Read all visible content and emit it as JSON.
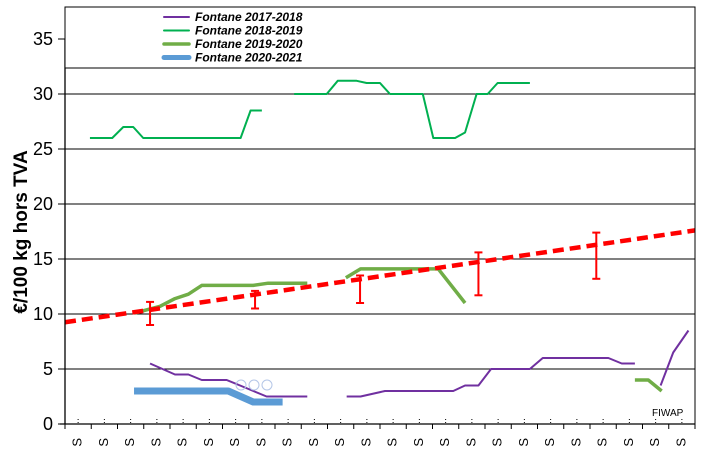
{
  "chart_data": {
    "type": "line",
    "title": "",
    "ylabel": "€/100 kg hors TVA",
    "xlabel": "",
    "ylim": [
      0,
      35
    ],
    "yticks": [
      "0",
      "5",
      "10",
      "15",
      "20",
      "25",
      "30",
      "35"
    ],
    "ytick_values": [
      0,
      5,
      10,
      15,
      20,
      25,
      30,
      35
    ],
    "xticks": [
      "S",
      "S",
      "S",
      "S",
      "S",
      "S",
      "S",
      "S",
      "S",
      "S",
      "S",
      "S",
      "S",
      "S",
      "S",
      "S",
      "S",
      "S",
      "S",
      "S",
      "S",
      "S",
      "S",
      "S"
    ],
    "x_unit_note": "x in category units (0 = left axis, 24 = right edge)",
    "xlim": [
      0,
      24
    ],
    "grid": true,
    "legend_placement": "top",
    "source_label": "FIWAP",
    "series": [
      {
        "name": "Fontane 2017-2018",
        "color": "#7030A0",
        "width": 2,
        "segments": [
          [
            [
              3.24,
              5.5
            ],
            [
              4.19,
              4.5
            ],
            [
              4.7,
              4.5
            ],
            [
              5.21,
              4.0
            ],
            [
              6.16,
              4.0
            ],
            [
              6.67,
              3.5
            ],
            [
              7.68,
              2.5
            ],
            [
              9.23,
              2.5
            ]
          ],
          [
            [
              10.73,
              2.5
            ],
            [
              11.26,
              2.5
            ],
            [
              12.19,
              3.0
            ],
            [
              14.79,
              3.0
            ],
            [
              15.24,
              3.5
            ],
            [
              15.75,
              3.5
            ],
            [
              16.23,
              5.0
            ],
            [
              17.71,
              5.0
            ],
            [
              18.2,
              6.0
            ],
            [
              20.7,
              6.0
            ],
            [
              21.21,
              5.5
            ],
            [
              21.71,
              5.5
            ]
          ],
          [
            [
              22.69,
              3.5
            ],
            [
              23.17,
              6.5
            ],
            [
              23.75,
              8.5
            ]
          ]
        ]
      },
      {
        "name": "Fontane 2018-2019",
        "color": "#00B050",
        "width": 2,
        "segments": [
          [
            [
              0.95,
              26
            ],
            [
              1.8,
              26
            ],
            [
              2.22,
              27
            ],
            [
              2.6,
              27
            ],
            [
              2.98,
              26
            ],
            [
              6.69,
              26
            ],
            [
              7.07,
              28.5
            ],
            [
              7.5,
              28.5
            ]
          ],
          [
            [
              8.73,
              30
            ],
            [
              9.97,
              30
            ],
            [
              10.39,
              31.2
            ],
            [
              11.11,
              31.2
            ],
            [
              11.49,
              31
            ],
            [
              12.0,
              31
            ],
            [
              12.38,
              30
            ],
            [
              13.63,
              30
            ],
            [
              14.03,
              26
            ],
            [
              14.86,
              26
            ],
            [
              15.24,
              26.5
            ],
            [
              15.68,
              30
            ],
            [
              16.1,
              30
            ],
            [
              16.48,
              31
            ],
            [
              17.71,
              31
            ]
          ]
        ]
      },
      {
        "name": "Fontane 2019-2020",
        "color": "#70AD47",
        "width": 3.5,
        "segments": [
          [
            [
              2.67,
              10.1
            ],
            [
              3.62,
              10.7
            ],
            [
              4.19,
              11.4
            ],
            [
              4.7,
              11.8
            ],
            [
              5.21,
              12.6
            ],
            [
              7.17,
              12.6
            ],
            [
              7.74,
              12.8
            ],
            [
              9.23,
              12.8
            ]
          ],
          [
            [
              10.7,
              13.3
            ],
            [
              11.26,
              14.1
            ],
            [
              14.22,
              14.1
            ],
            [
              15.24,
              11.0
            ]
          ],
          [
            [
              21.71,
              4.0
            ],
            [
              22.22,
              4.0
            ],
            [
              22.73,
              3.0
            ]
          ]
        ]
      },
      {
        "name": "Fontane 2020-2021",
        "color": "#5B9BD5",
        "width": 7,
        "segments": [
          [
            [
              2.63,
              3.0
            ],
            [
              6.22,
              3.0
            ],
            [
              7.17,
              2.0
            ],
            [
              8.29,
              2.0
            ]
          ]
        ]
      }
    ],
    "trend": {
      "color": "#FF0000",
      "from": [
        0,
        9.25
      ],
      "to": [
        24,
        17.6
      ]
    },
    "error_bars": [
      {
        "x": 3.24,
        "low": 9.0,
        "high": 11.1
      },
      {
        "x": 7.24,
        "low": 10.5,
        "high": 12.1
      },
      {
        "x": 11.24,
        "low": 11.0,
        "high": 13.5
      },
      {
        "x": 15.75,
        "low": 11.7,
        "high": 15.6
      },
      {
        "x": 20.24,
        "low": 13.2,
        "high": 17.4
      }
    ]
  }
}
